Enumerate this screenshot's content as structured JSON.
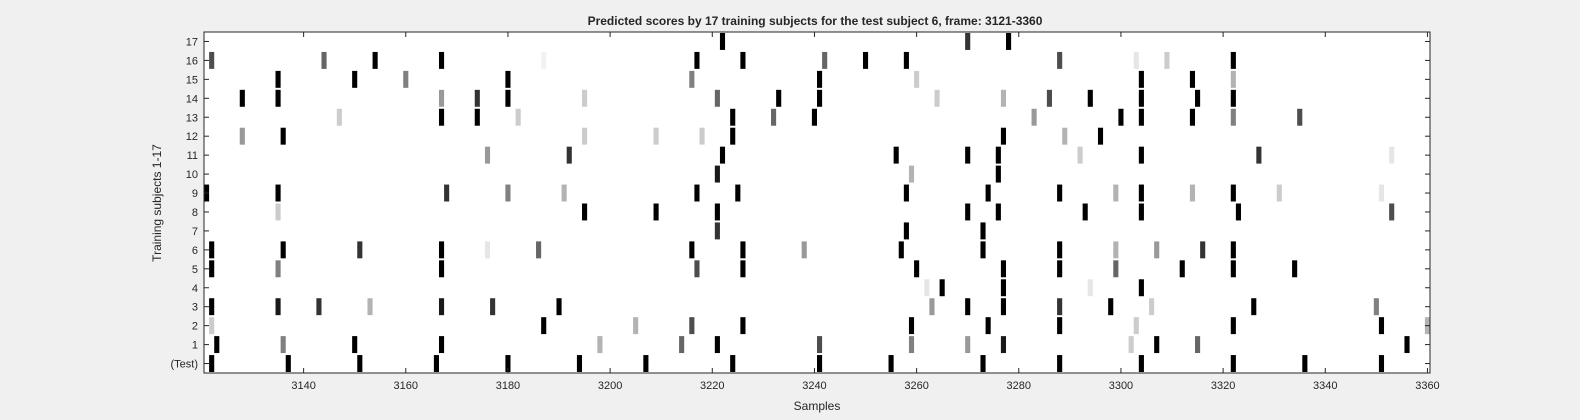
{
  "chart_data": {
    "type": "heatmap",
    "title": "Predicted scores by 17 training subjects for the test subject 6, frame: 3121-3360",
    "xlabel": "Samples",
    "ylabel": "Training subjects 1-17",
    "xlim": [
      3121,
      3360
    ],
    "x_ticks": [
      3140,
      3160,
      3180,
      3200,
      3220,
      3240,
      3260,
      3280,
      3300,
      3320,
      3340,
      3360
    ],
    "y_tick_labels": [
      "(Test)",
      "1",
      "2",
      "3",
      "4",
      "5",
      "6",
      "7",
      "8",
      "9",
      "10",
      "11",
      "12",
      "13",
      "14",
      "15",
      "16",
      "17"
    ],
    "grid": false,
    "colormap": "gray-inverted",
    "rows": [
      {
        "label": "(Test)",
        "cells": [
          [
            3122,
            1
          ],
          [
            3137,
            1
          ],
          [
            3151,
            1
          ],
          [
            3166,
            1
          ],
          [
            3180,
            1
          ],
          [
            3194,
            1
          ],
          [
            3207,
            1
          ],
          [
            3224,
            1
          ],
          [
            3241,
            1
          ],
          [
            3255,
            1
          ],
          [
            3273,
            1
          ],
          [
            3288,
            1
          ],
          [
            3304,
            1
          ],
          [
            3322,
            1
          ],
          [
            3336,
            1
          ],
          [
            3351,
            1
          ]
        ]
      },
      {
        "label": "1",
        "cells": [
          [
            3123,
            1
          ],
          [
            3136,
            0.5
          ],
          [
            3150,
            1
          ],
          [
            3167,
            1
          ],
          [
            3198,
            0.3
          ],
          [
            3214,
            0.6
          ],
          [
            3221,
            1
          ],
          [
            3241,
            0.7
          ],
          [
            3259,
            0.5
          ],
          [
            3270,
            0.4
          ],
          [
            3277,
            0.9
          ],
          [
            3302,
            0.2
          ],
          [
            3307,
            1
          ],
          [
            3315,
            0.6
          ],
          [
            3356,
            1
          ]
        ]
      },
      {
        "label": "2",
        "cells": [
          [
            3122,
            0.2
          ],
          [
            3187,
            1
          ],
          [
            3205,
            0.3
          ],
          [
            3216,
            0.7
          ],
          [
            3226,
            1
          ],
          [
            3259,
            1
          ],
          [
            3274,
            1
          ],
          [
            3288,
            1
          ],
          [
            3303,
            0.2
          ],
          [
            3322,
            1
          ],
          [
            3351,
            1
          ],
          [
            3360,
            0.3
          ]
        ]
      },
      {
        "label": "3",
        "cells": [
          [
            3122,
            1
          ],
          [
            3135,
            0.9
          ],
          [
            3143,
            0.8
          ],
          [
            3153,
            0.3
          ],
          [
            3167,
            0.9
          ],
          [
            3177,
            0.8
          ],
          [
            3190,
            1
          ],
          [
            3263,
            0.4
          ],
          [
            3270,
            1
          ],
          [
            3277,
            1
          ],
          [
            3288,
            0.8
          ],
          [
            3298,
            1
          ],
          [
            3306,
            0.2
          ],
          [
            3326,
            1
          ],
          [
            3350,
            0.5
          ]
        ]
      },
      {
        "label": "4",
        "cells": [
          [
            3262,
            0.1
          ],
          [
            3265,
            1
          ],
          [
            3277,
            1
          ],
          [
            3294,
            0.1
          ],
          [
            3304,
            1
          ]
        ]
      },
      {
        "label": "5",
        "cells": [
          [
            3122,
            1
          ],
          [
            3135,
            0.5
          ],
          [
            3167,
            1
          ],
          [
            3217,
            0.7
          ],
          [
            3226,
            1
          ],
          [
            3260,
            1
          ],
          [
            3277,
            1
          ],
          [
            3288,
            1
          ],
          [
            3299,
            0.6
          ],
          [
            3312,
            1
          ],
          [
            3322,
            1
          ],
          [
            3334,
            1
          ]
        ]
      },
      {
        "label": "6",
        "cells": [
          [
            3122,
            1
          ],
          [
            3136,
            1
          ],
          [
            3151,
            0.8
          ],
          [
            3167,
            1
          ],
          [
            3176,
            0.1
          ],
          [
            3186,
            0.6
          ],
          [
            3216,
            1
          ],
          [
            3226,
            1
          ],
          [
            3238,
            0.4
          ],
          [
            3257,
            1
          ],
          [
            3273,
            1
          ],
          [
            3288,
            1
          ],
          [
            3299,
            0.3
          ],
          [
            3307,
            0.4
          ],
          [
            3316,
            0.8
          ],
          [
            3322,
            1
          ]
        ]
      },
      {
        "label": "7",
        "cells": [
          [
            3221,
            0.8
          ],
          [
            3258,
            1
          ],
          [
            3273,
            1
          ]
        ]
      },
      {
        "label": "8",
        "cells": [
          [
            3135,
            0.2
          ],
          [
            3195,
            1
          ],
          [
            3209,
            1
          ],
          [
            3221,
            1
          ],
          [
            3270,
            1
          ],
          [
            3276,
            1
          ],
          [
            3293,
            1
          ],
          [
            3304,
            1
          ],
          [
            3323,
            1
          ],
          [
            3353,
            0.7
          ]
        ]
      },
      {
        "label": "9",
        "cells": [
          [
            3121,
            1
          ],
          [
            3135,
            1
          ],
          [
            3168,
            0.8
          ],
          [
            3180,
            0.5
          ],
          [
            3191,
            0.3
          ],
          [
            3217,
            1
          ],
          [
            3225,
            1
          ],
          [
            3258,
            1
          ],
          [
            3274,
            1
          ],
          [
            3288,
            1
          ],
          [
            3299,
            0.3
          ],
          [
            3304,
            1
          ],
          [
            3314,
            0.3
          ],
          [
            3322,
            1
          ],
          [
            3331,
            0.2
          ],
          [
            3351,
            0.1
          ]
        ]
      },
      {
        "label": "10",
        "cells": [
          [
            3221,
            0.9
          ],
          [
            3259,
            0.3
          ],
          [
            3276,
            1
          ]
        ]
      },
      {
        "label": "11",
        "cells": [
          [
            3176,
            0.4
          ],
          [
            3192,
            0.8
          ],
          [
            3222,
            1
          ],
          [
            3256,
            1
          ],
          [
            3270,
            1
          ],
          [
            3276,
            1
          ],
          [
            3292,
            0.2
          ],
          [
            3304,
            1
          ],
          [
            3327,
            0.8
          ],
          [
            3353,
            0.1
          ]
        ]
      },
      {
        "label": "12",
        "cells": [
          [
            3128,
            0.4
          ],
          [
            3136,
            1
          ],
          [
            3195,
            0.2
          ],
          [
            3209,
            0.2
          ],
          [
            3218,
            0.2
          ],
          [
            3224,
            1
          ],
          [
            3277,
            1
          ],
          [
            3289,
            0.3
          ],
          [
            3296,
            1
          ]
        ]
      },
      {
        "label": "13",
        "cells": [
          [
            3167,
            1
          ],
          [
            3147,
            0.2
          ],
          [
            3174,
            1
          ],
          [
            3182,
            0.2
          ],
          [
            3224,
            1
          ],
          [
            3232,
            0.6
          ],
          [
            3240,
            1
          ],
          [
            3283,
            0.4
          ],
          [
            3300,
            1
          ],
          [
            3304,
            1
          ],
          [
            3314,
            1
          ],
          [
            3322,
            0.5
          ],
          [
            3335,
            0.7
          ]
        ]
      },
      {
        "label": "14",
        "cells": [
          [
            3128,
            1
          ],
          [
            3135,
            1
          ],
          [
            3167,
            0.4
          ],
          [
            3174,
            0.8
          ],
          [
            3180,
            1
          ],
          [
            3195,
            0.2
          ],
          [
            3221,
            0.6
          ],
          [
            3233,
            1
          ],
          [
            3241,
            1
          ],
          [
            3264,
            0.2
          ],
          [
            3277,
            0.3
          ],
          [
            3286,
            0.7
          ],
          [
            3294,
            1
          ],
          [
            3304,
            1
          ],
          [
            3315,
            1
          ],
          [
            3322,
            1
          ]
        ]
      },
      {
        "label": "15",
        "cells": [
          [
            3135,
            1
          ],
          [
            3150,
            1
          ],
          [
            3160,
            0.5
          ],
          [
            3180,
            1
          ],
          [
            3216,
            0.5
          ],
          [
            3241,
            1
          ],
          [
            3260,
            0.2
          ],
          [
            3304,
            1
          ],
          [
            3314,
            1
          ],
          [
            3322,
            0.3
          ]
        ]
      },
      {
        "label": "16",
        "cells": [
          [
            3122,
            0.7
          ],
          [
            3144,
            0.6
          ],
          [
            3154,
            1
          ],
          [
            3167,
            1
          ],
          [
            3187,
            0.05
          ],
          [
            3217,
            1
          ],
          [
            3226,
            1
          ],
          [
            3242,
            0.6
          ],
          [
            3250,
            1
          ],
          [
            3258,
            1
          ],
          [
            3288,
            0.7
          ],
          [
            3303,
            0.1
          ],
          [
            3309,
            0.2
          ],
          [
            3322,
            1
          ]
        ]
      },
      {
        "label": "17",
        "cells": [
          [
            3222,
            1
          ],
          [
            3270,
            0.8
          ],
          [
            3278,
            1
          ]
        ]
      }
    ]
  }
}
